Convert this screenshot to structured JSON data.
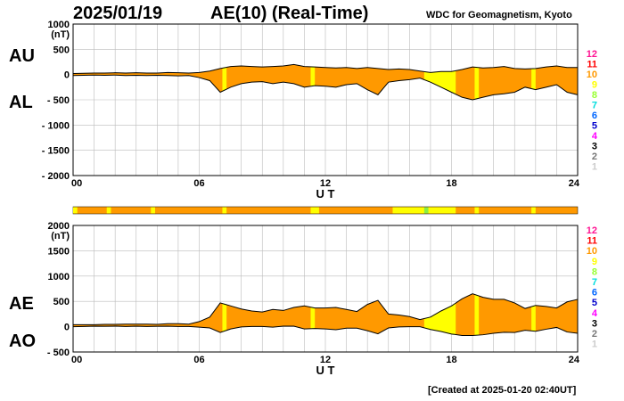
{
  "header": {
    "date": "2025/01/19",
    "title": "AE(10) (Real-Time)",
    "org": "WDC for Geomagnetism, Kyoto"
  },
  "footer": {
    "created": "[Created at 2025-01-20 02:40UT]"
  },
  "colors": {
    "fill_main": "#ff9900",
    "fill_light": "#ffff00",
    "line": "#000000",
    "grid": "#bbbbbb"
  },
  "chart_data": [
    {
      "type": "area",
      "name": "upper-panel",
      "labels": [
        "AU",
        "AL"
      ],
      "ylabel_unit": "(nT)",
      "xlabel": "U T",
      "xlim": [
        0,
        24
      ],
      "xticks": [
        "00",
        "06",
        "12",
        "18",
        "24"
      ],
      "ylim": [
        -2000,
        1000
      ],
      "yticks": [
        "1000",
        "500",
        "0",
        "- 500",
        "- 1000",
        "- 1500",
        "- 2000"
      ],
      "grid": true,
      "x": [
        0,
        0.5,
        1,
        1.5,
        2,
        2.5,
        3,
        3.5,
        4,
        4.5,
        5,
        5.5,
        6,
        6.5,
        7,
        7.5,
        8,
        8.5,
        9,
        9.5,
        10,
        10.5,
        11,
        11.5,
        12,
        12.5,
        13,
        13.5,
        14,
        14.5,
        15,
        15.5,
        16,
        16.5,
        17,
        17.5,
        18,
        18.5,
        19,
        19.5,
        20,
        20.5,
        21,
        21.5,
        22,
        22.5,
        23,
        23.5,
        24
      ],
      "series": [
        {
          "name": "AU",
          "values": [
            20,
            25,
            30,
            30,
            35,
            30,
            35,
            30,
            30,
            40,
            35,
            30,
            40,
            70,
            120,
            160,
            170,
            160,
            150,
            160,
            170,
            200,
            160,
            150,
            140,
            130,
            140,
            120,
            140,
            120,
            100,
            110,
            100,
            70,
            40,
            60,
            60,
            100,
            150,
            130,
            140,
            160,
            120,
            110,
            120,
            150,
            170,
            140,
            140
          ]
        },
        {
          "name": "AL",
          "values": [
            -20,
            -15,
            -10,
            -15,
            -10,
            -20,
            -15,
            -20,
            -15,
            -20,
            -25,
            -20,
            -60,
            -120,
            -350,
            -250,
            -180,
            -150,
            -140,
            -180,
            -150,
            -180,
            -250,
            -220,
            -230,
            -250,
            -200,
            -180,
            -300,
            -400,
            -150,
            -120,
            -100,
            -70,
            -150,
            -250,
            -350,
            -450,
            -500,
            -450,
            -400,
            -380,
            -350,
            -250,
            -300,
            -250,
            -200,
            -350,
            -400
          ]
        }
      ]
    },
    {
      "type": "area",
      "name": "lower-panel",
      "labels": [
        "AE",
        "AO"
      ],
      "ylabel_unit": "(nT)",
      "xlabel": "U T",
      "xlim": [
        0,
        24
      ],
      "xticks": [
        "00",
        "06",
        "12",
        "18",
        "24"
      ],
      "ylim": [
        -500,
        2000
      ],
      "yticks": [
        "2000",
        "1500",
        "1000",
        "500",
        "0",
        "- 500"
      ],
      "grid": true,
      "x": [
        0,
        0.5,
        1,
        1.5,
        2,
        2.5,
        3,
        3.5,
        4,
        4.5,
        5,
        5.5,
        6,
        6.5,
        7,
        7.5,
        8,
        8.5,
        9,
        9.5,
        10,
        10.5,
        11,
        11.5,
        12,
        12.5,
        13,
        13.5,
        14,
        14.5,
        15,
        15.5,
        16,
        16.5,
        17,
        17.5,
        18,
        18.5,
        19,
        19.5,
        20,
        20.5,
        21,
        21.5,
        22,
        22.5,
        23,
        23.5,
        24
      ],
      "series": [
        {
          "name": "AE",
          "values": [
            40,
            40,
            40,
            45,
            45,
            50,
            50,
            50,
            45,
            60,
            60,
            50,
            100,
            190,
            470,
            410,
            350,
            310,
            290,
            340,
            320,
            380,
            410,
            370,
            370,
            380,
            340,
            300,
            440,
            520,
            250,
            230,
            200,
            140,
            190,
            310,
            410,
            550,
            650,
            580,
            540,
            540,
            470,
            360,
            420,
            400,
            370,
            490,
            540
          ]
        },
        {
          "name": "AO",
          "values": [
            0,
            5,
            10,
            8,
            12,
            5,
            10,
            5,
            8,
            10,
            5,
            5,
            -10,
            -25,
            -115,
            -45,
            -5,
            5,
            5,
            -10,
            10,
            10,
            -45,
            -35,
            -45,
            -60,
            -30,
            -30,
            -80,
            -140,
            -25,
            -5,
            0,
            0,
            -55,
            -95,
            -145,
            -175,
            -175,
            -160,
            -130,
            -110,
            -115,
            -70,
            -90,
            -50,
            -15,
            -105,
            -130
          ]
        }
      ]
    }
  ],
  "kp_bar": {
    "segments": [
      {
        "from": 0,
        "to": 0.2,
        "color": "#ffff00"
      },
      {
        "from": 1.6,
        "to": 1.8,
        "color": "#ffff00"
      },
      {
        "from": 3.7,
        "to": 3.9,
        "color": "#ffff00"
      },
      {
        "from": 7.1,
        "to": 7.3,
        "color": "#ffff00"
      },
      {
        "from": 11.3,
        "to": 11.7,
        "color": "#ffff00"
      },
      {
        "from": 15.2,
        "to": 18.2,
        "color": "#ffff00"
      },
      {
        "from": 16.7,
        "to": 16.9,
        "color": "#88ee44"
      },
      {
        "from": 19.1,
        "to": 19.3,
        "color": "#ffff00"
      },
      {
        "from": 21.8,
        "to": 22.0,
        "color": "#ffff00"
      }
    ],
    "light_bands": [
      [
        7.1,
        7.3
      ],
      [
        11.3,
        11.5
      ],
      [
        16.7,
        18.2
      ],
      [
        19.1,
        19.3
      ],
      [
        21.8,
        22.0
      ]
    ]
  },
  "legend_scale": [
    {
      "label": "12",
      "color": "#ff1493"
    },
    {
      "label": "11",
      "color": "#ff0000"
    },
    {
      "label": "10",
      "color": "#ff9900"
    },
    {
      "label": "9",
      "color": "#ffff00"
    },
    {
      "label": "8",
      "color": "#99ff33"
    },
    {
      "label": "7",
      "color": "#00dddd"
    },
    {
      "label": "6",
      "color": "#0066ff"
    },
    {
      "label": "5",
      "color": "#0000cc"
    },
    {
      "label": "4",
      "color": "#ff00ff"
    },
    {
      "label": "3",
      "color": "#000000"
    },
    {
      "label": "2",
      "color": "#777777"
    },
    {
      "label": "1",
      "color": "#cccccc"
    }
  ]
}
